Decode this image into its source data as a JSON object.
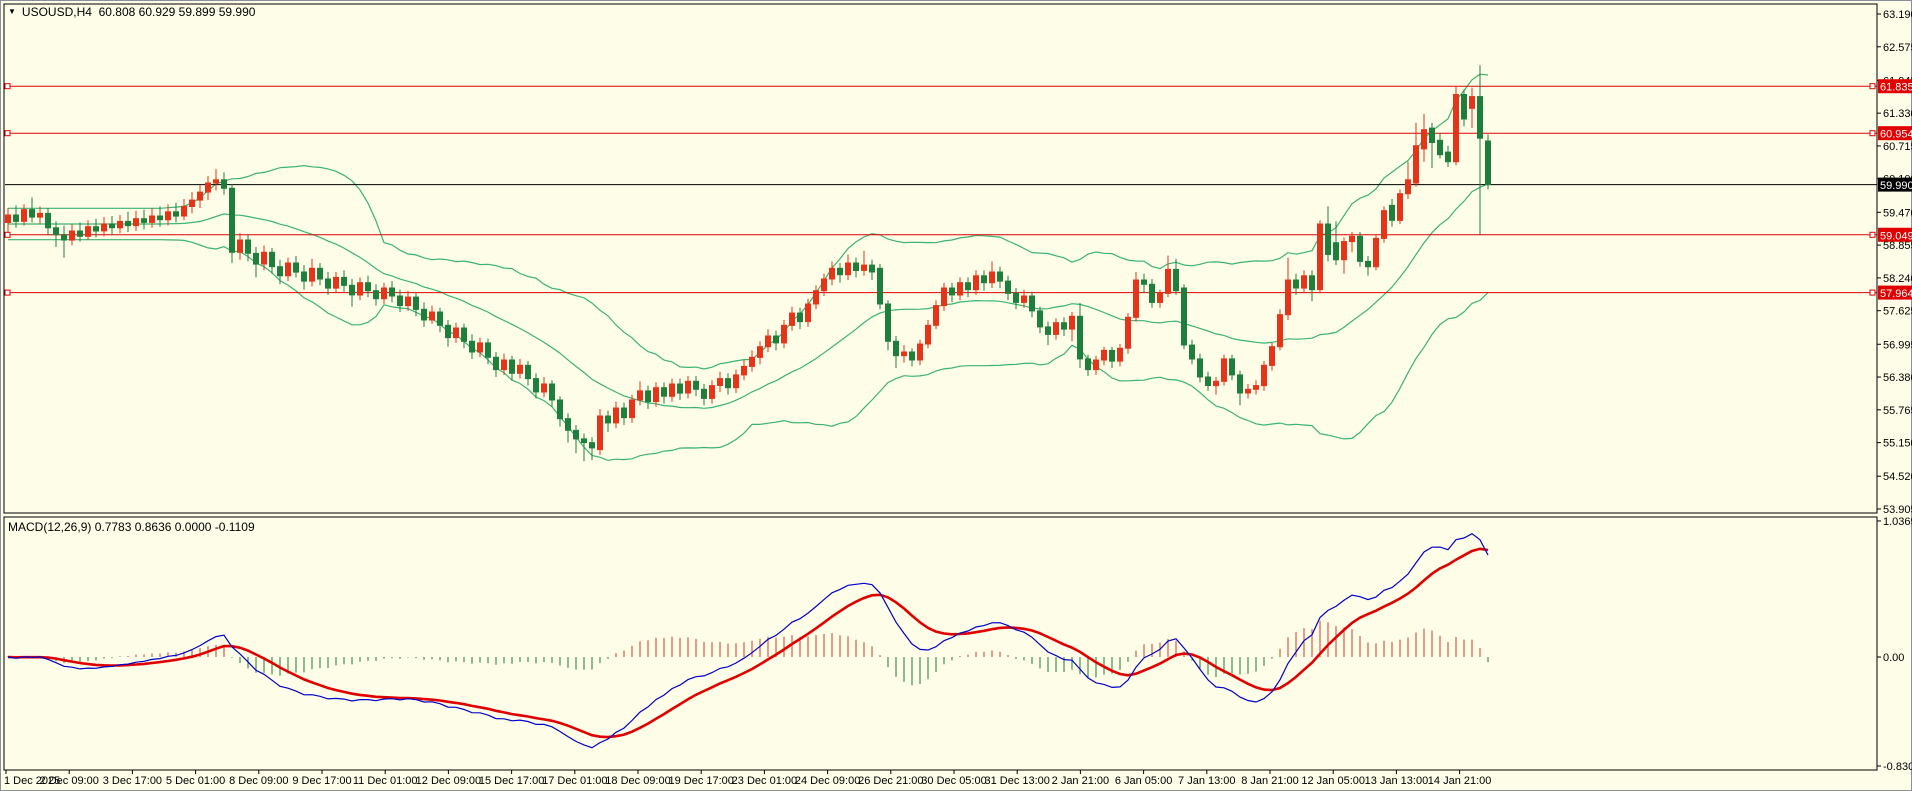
{
  "window": {
    "title_symbol": "USOUSD,H4",
    "title_ohlc": "60.808 60.929 59.899 59.990",
    "dropdown_marker": "▼"
  },
  "colors": {
    "background": "#FDFDE8",
    "frame": "#000000",
    "outer_border": "#8A9099",
    "bull_candle": "#E5341A",
    "bear_candle": "#1E7F3C",
    "bollinger": "#3CB371",
    "macd_line": "#0000CC",
    "signal_line": "#E00000",
    "hist_positive": "#CF3B2A",
    "hist_negative": "#1C7A33",
    "hline_red": "#E00000",
    "hline_black": "#000000",
    "badge_text": "#FFFFFF",
    "axis_text": "#000000"
  },
  "price_axis": {
    "ticks": [
      "63.190",
      "62.575",
      "61.945",
      "61.330",
      "60.715",
      "60.100",
      "59.470",
      "58.855",
      "58.240",
      "57.625",
      "56.995",
      "56.380",
      "55.765",
      "55.150",
      "54.520",
      "53.905"
    ],
    "hlines": [
      {
        "price": 61.835,
        "label": "61.835",
        "style": "red"
      },
      {
        "price": 60.954,
        "label": "60.954",
        "style": "red"
      },
      {
        "price": 59.99,
        "label": "59.990",
        "style": "black"
      },
      {
        "price": 59.049,
        "label": "59.049",
        "style": "red"
      },
      {
        "price": 57.964,
        "label": "57.964",
        "style": "red"
      }
    ]
  },
  "time_axis": {
    "labels": [
      "1 Dec 2025",
      "2 Dec 09:00",
      "3 Dec 17:00",
      "5 Dec 01:00",
      "8 Dec 09:00",
      "9 Dec 17:00",
      "11 Dec 01:00",
      "12 Dec 09:00",
      "15 Dec 17:00",
      "17 Dec 01:00",
      "18 Dec 09:00",
      "19 Dec 17:00",
      "23 Dec 01:00",
      "24 Dec 09:00",
      "26 Dec 21:00",
      "30 Dec 05:00",
      "31 Dec 13:00",
      "2 Jan 21:00",
      "6 Jan 05:00",
      "7 Jan 13:00",
      "8 Jan 21:00",
      "12 Jan 05:00",
      "13 Jan 13:00",
      "14 Jan 21:00"
    ]
  },
  "indicator": {
    "label": "MACD(12,26,9) 0.7783 0.8636 0.0000 -0.1109",
    "axis": [
      {
        "value": 1.0369,
        "label": "1.0369"
      },
      {
        "value": 0,
        "label": "0.00"
      },
      {
        "value": -0.8307,
        "label": "-0.8307"
      }
    ]
  },
  "chart_data": {
    "type": "candlestick",
    "symbol": "USOUSD",
    "timeframe": "H4",
    "note": "candles as [open,high,low,close]; up candles drawn red, down candles drawn green",
    "last_bar": {
      "open": 60.808,
      "high": 60.929,
      "low": 59.899,
      "close": 59.99
    },
    "indicators": [
      {
        "type": "bollinger",
        "period": 20,
        "deviation": 2
      },
      {
        "type": "macd",
        "fast": 12,
        "slow": 26,
        "signal": 9,
        "values": [
          0.7783,
          0.8636,
          0.0,
          -0.1109
        ]
      }
    ],
    "ylim": [
      53.83,
      63.3
    ],
    "macd_ylim": [
      -0.88,
      1.08
    ],
    "candles": [
      [
        59.28,
        59.55,
        59.1,
        59.42
      ],
      [
        59.42,
        59.6,
        59.18,
        59.3
      ],
      [
        59.3,
        59.62,
        59.22,
        59.52
      ],
      [
        59.52,
        59.75,
        59.28,
        59.38
      ],
      [
        59.38,
        59.58,
        59.25,
        59.45
      ],
      [
        59.45,
        59.55,
        59.05,
        59.18
      ],
      [
        59.18,
        59.3,
        58.82,
        59.05
      ],
      [
        59.05,
        59.22,
        58.62,
        58.95
      ],
      [
        58.95,
        59.25,
        58.85,
        59.12
      ],
      [
        59.12,
        59.28,
        58.92,
        59.02
      ],
      [
        59.02,
        59.32,
        58.95,
        59.2
      ],
      [
        59.2,
        59.35,
        59.0,
        59.12
      ],
      [
        59.12,
        59.38,
        59.02,
        59.25
      ],
      [
        59.25,
        59.4,
        59.05,
        59.18
      ],
      [
        59.18,
        59.42,
        59.08,
        59.3
      ],
      [
        59.3,
        59.48,
        59.1,
        59.22
      ],
      [
        59.22,
        59.5,
        59.12,
        59.35
      ],
      [
        59.35,
        59.52,
        59.15,
        59.28
      ],
      [
        59.28,
        59.55,
        59.18,
        59.4
      ],
      [
        59.4,
        59.58,
        59.2,
        59.33
      ],
      [
        59.33,
        59.62,
        59.22,
        59.48
      ],
      [
        59.48,
        59.65,
        59.28,
        59.4
      ],
      [
        59.4,
        59.72,
        59.32,
        59.58
      ],
      [
        59.58,
        59.85,
        59.45,
        59.7
      ],
      [
        59.7,
        59.98,
        59.55,
        59.85
      ],
      [
        59.85,
        60.15,
        59.7,
        60.02
      ],
      [
        60.02,
        60.28,
        59.88,
        60.08
      ],
      [
        60.08,
        60.22,
        59.8,
        59.92
      ],
      [
        59.92,
        60.0,
        58.52,
        58.72
      ],
      [
        58.72,
        59.08,
        58.58,
        58.95
      ],
      [
        58.95,
        59.05,
        58.55,
        58.7
      ],
      [
        58.7,
        58.82,
        58.25,
        58.5
      ],
      [
        58.5,
        58.85,
        58.38,
        58.72
      ],
      [
        58.72,
        58.8,
        58.32,
        58.45
      ],
      [
        58.45,
        58.58,
        58.12,
        58.28
      ],
      [
        58.28,
        58.62,
        58.18,
        58.52
      ],
      [
        58.52,
        58.65,
        58.25,
        58.35
      ],
      [
        58.35,
        58.48,
        58.02,
        58.18
      ],
      [
        58.18,
        58.6,
        58.08,
        58.42
      ],
      [
        58.42,
        58.52,
        58.1,
        58.22
      ],
      [
        58.22,
        58.35,
        57.92,
        58.05
      ],
      [
        58.05,
        58.35,
        57.95,
        58.25
      ],
      [
        58.25,
        58.38,
        57.98,
        58.1
      ],
      [
        58.1,
        58.22,
        57.7,
        57.92
      ],
      [
        57.92,
        58.25,
        57.82,
        58.15
      ],
      [
        58.15,
        58.28,
        57.88,
        58.0
      ],
      [
        58.0,
        58.12,
        57.72,
        57.85
      ],
      [
        57.85,
        58.15,
        57.75,
        58.05
      ],
      [
        58.05,
        58.18,
        57.78,
        57.9
      ],
      [
        57.9,
        58.02,
        57.6,
        57.72
      ],
      [
        57.72,
        58.0,
        57.62,
        57.88
      ],
      [
        57.88,
        57.95,
        57.52,
        57.65
      ],
      [
        57.65,
        57.78,
        57.32,
        57.45
      ],
      [
        57.45,
        57.72,
        57.38,
        57.6
      ],
      [
        57.6,
        57.68,
        57.22,
        57.35
      ],
      [
        57.35,
        57.45,
        56.95,
        57.12
      ],
      [
        57.12,
        57.4,
        57.02,
        57.3
      ],
      [
        57.3,
        57.38,
        56.92,
        57.05
      ],
      [
        57.05,
        57.18,
        56.72,
        56.85
      ],
      [
        56.85,
        57.12,
        56.75,
        57.02
      ],
      [
        57.02,
        57.1,
        56.62,
        56.75
      ],
      [
        56.75,
        56.85,
        56.38,
        56.52
      ],
      [
        56.52,
        56.82,
        56.42,
        56.7
      ],
      [
        56.7,
        56.78,
        56.32,
        56.45
      ],
      [
        56.45,
        56.72,
        56.35,
        56.6
      ],
      [
        56.6,
        56.68,
        56.22,
        56.35
      ],
      [
        56.35,
        56.45,
        55.98,
        56.1
      ],
      [
        56.1,
        56.38,
        56.0,
        56.25
      ],
      [
        56.25,
        56.32,
        55.82,
        55.95
      ],
      [
        55.95,
        56.02,
        55.45,
        55.6
      ],
      [
        55.6,
        55.7,
        55.15,
        55.38
      ],
      [
        55.38,
        55.48,
        54.95,
        55.22
      ],
      [
        55.22,
        55.32,
        54.8,
        55.15
      ],
      [
        55.15,
        55.25,
        54.82,
        55.05
      ],
      [
        55.02,
        55.78,
        54.92,
        55.65
      ],
      [
        55.65,
        55.75,
        55.35,
        55.52
      ],
      [
        55.52,
        55.92,
        55.42,
        55.8
      ],
      [
        55.8,
        55.9,
        55.48,
        55.62
      ],
      [
        55.62,
        56.05,
        55.52,
        55.95
      ],
      [
        55.95,
        56.3,
        55.85,
        56.12
      ],
      [
        56.12,
        56.22,
        55.78,
        55.92
      ],
      [
        55.92,
        56.28,
        55.82,
        56.18
      ],
      [
        56.18,
        56.28,
        55.88,
        56.02
      ],
      [
        56.02,
        56.35,
        55.92,
        56.25
      ],
      [
        56.25,
        56.35,
        55.95,
        56.08
      ],
      [
        56.08,
        56.4,
        55.98,
        56.3
      ],
      [
        56.3,
        56.4,
        56.02,
        56.15
      ],
      [
        56.15,
        56.25,
        55.85,
        55.98
      ],
      [
        55.98,
        56.32,
        55.88,
        56.22
      ],
      [
        56.22,
        56.48,
        56.1,
        56.35
      ],
      [
        56.35,
        56.45,
        56.05,
        56.18
      ],
      [
        56.18,
        56.52,
        56.08,
        56.42
      ],
      [
        56.42,
        56.7,
        56.32,
        56.58
      ],
      [
        56.58,
        56.88,
        56.48,
        56.75
      ],
      [
        56.75,
        57.05,
        56.62,
        56.95
      ],
      [
        56.95,
        57.28,
        56.85,
        57.15
      ],
      [
        57.15,
        57.25,
        56.88,
        57.02
      ],
      [
        57.02,
        57.45,
        56.92,
        57.35
      ],
      [
        57.35,
        57.7,
        57.25,
        57.58
      ],
      [
        57.58,
        57.68,
        57.28,
        57.42
      ],
      [
        57.42,
        57.85,
        57.32,
        57.75
      ],
      [
        57.75,
        58.1,
        57.65,
        58.0
      ],
      [
        58.0,
        58.32,
        57.9,
        58.22
      ],
      [
        58.22,
        58.55,
        58.1,
        58.42
      ],
      [
        58.42,
        58.52,
        58.15,
        58.3
      ],
      [
        58.3,
        58.68,
        58.2,
        58.52
      ],
      [
        58.52,
        58.62,
        58.25,
        58.38
      ],
      [
        58.38,
        58.75,
        58.28,
        58.48
      ],
      [
        58.48,
        58.58,
        58.2,
        58.35
      ],
      [
        58.42,
        58.5,
        57.65,
        57.75
      ],
      [
        57.75,
        57.82,
        56.88,
        57.05
      ],
      [
        57.05,
        57.15,
        56.55,
        56.78
      ],
      [
        56.78,
        56.98,
        56.65,
        56.85
      ],
      [
        56.85,
        56.92,
        56.58,
        56.7
      ],
      [
        56.7,
        57.08,
        56.6,
        57.0
      ],
      [
        57.0,
        57.45,
        56.92,
        57.35
      ],
      [
        57.35,
        57.82,
        57.28,
        57.72
      ],
      [
        57.72,
        58.15,
        57.62,
        58.05
      ],
      [
        58.05,
        58.15,
        57.78,
        57.92
      ],
      [
        57.92,
        58.25,
        57.82,
        58.15
      ],
      [
        58.15,
        58.25,
        57.88,
        58.02
      ],
      [
        58.02,
        58.38,
        57.92,
        58.28
      ],
      [
        58.28,
        58.38,
        58.0,
        58.15
      ],
      [
        58.15,
        58.55,
        58.05,
        58.35
      ],
      [
        58.35,
        58.45,
        58.05,
        58.18
      ],
      [
        58.18,
        58.28,
        57.82,
        57.95
      ],
      [
        57.95,
        58.05,
        57.65,
        57.78
      ],
      [
        57.78,
        58.02,
        57.68,
        57.9
      ],
      [
        57.9,
        57.98,
        57.5,
        57.62
      ],
      [
        57.62,
        57.7,
        57.2,
        57.32
      ],
      [
        57.32,
        57.42,
        56.98,
        57.18
      ],
      [
        57.18,
        57.48,
        57.08,
        57.4
      ],
      [
        57.4,
        57.5,
        57.15,
        57.28
      ],
      [
        57.28,
        57.6,
        57.05,
        57.52
      ],
      [
        57.52,
        57.77,
        56.55,
        56.72
      ],
      [
        56.72,
        56.8,
        56.4,
        56.52
      ],
      [
        56.52,
        56.78,
        56.42,
        56.7
      ],
      [
        56.7,
        56.95,
        56.6,
        56.88
      ],
      [
        56.88,
        56.95,
        56.55,
        56.68
      ],
      [
        56.68,
        57.0,
        56.58,
        56.92
      ],
      [
        56.92,
        57.58,
        56.82,
        57.5
      ],
      [
        57.5,
        58.35,
        57.42,
        58.2
      ],
      [
        58.2,
        58.32,
        57.95,
        58.12
      ],
      [
        58.12,
        58.22,
        57.68,
        57.78
      ],
      [
        57.78,
        58.02,
        57.68,
        57.95
      ],
      [
        57.95,
        58.66,
        57.88,
        58.4
      ],
      [
        58.4,
        58.6,
        57.92,
        58.0
      ],
      [
        58.05,
        58.12,
        56.9,
        56.98
      ],
      [
        56.98,
        57.08,
        56.62,
        56.72
      ],
      [
        56.72,
        56.82,
        56.28,
        56.38
      ],
      [
        56.38,
        56.48,
        56.12,
        56.22
      ],
      [
        56.22,
        56.38,
        56.05,
        56.3
      ],
      [
        56.3,
        56.8,
        56.22,
        56.72
      ],
      [
        56.72,
        56.8,
        56.32,
        56.42
      ],
      [
        56.42,
        56.5,
        55.85,
        56.08
      ],
      [
        56.08,
        56.25,
        55.98,
        56.15
      ],
      [
        56.15,
        56.32,
        56.05,
        56.22
      ],
      [
        56.22,
        56.68,
        56.12,
        56.6
      ],
      [
        56.6,
        57.02,
        56.5,
        56.95
      ],
      [
        56.95,
        57.65,
        56.88,
        57.55
      ],
      [
        57.55,
        58.62,
        57.45,
        58.2
      ],
      [
        58.2,
        58.32,
        57.92,
        58.05
      ],
      [
        58.05,
        58.38,
        57.95,
        58.28
      ],
      [
        58.28,
        58.38,
        57.8,
        58.02
      ],
      [
        58.02,
        59.32,
        57.95,
        59.25
      ],
      [
        59.25,
        59.58,
        58.55,
        58.68
      ],
      [
        58.9,
        59.3,
        58.48,
        58.58
      ],
      [
        58.58,
        59.0,
        58.32,
        58.92
      ],
      [
        58.92,
        59.1,
        58.72,
        59.02
      ],
      [
        59.02,
        59.1,
        58.45,
        58.55
      ],
      [
        58.55,
        58.65,
        58.28,
        58.45
      ],
      [
        58.45,
        59.05,
        58.38,
        58.98
      ],
      [
        58.98,
        59.58,
        58.9,
        59.5
      ],
      [
        59.6,
        59.72,
        59.2,
        59.32
      ],
      [
        59.32,
        59.9,
        59.25,
        59.82
      ],
      [
        59.82,
        60.42,
        59.72,
        60.08
      ],
      [
        60.02,
        61.15,
        59.95,
        60.72
      ],
      [
        60.66,
        61.32,
        60.42,
        61.02
      ],
      [
        61.05,
        61.15,
        60.3,
        60.78
      ],
      [
        60.82,
        60.95,
        60.48,
        60.55
      ],
      [
        60.6,
        60.72,
        60.32,
        60.42
      ],
      [
        60.42,
        61.84,
        60.35,
        61.68
      ],
      [
        61.68,
        61.78,
        61.08,
        61.22
      ],
      [
        61.42,
        61.81,
        61.05,
        61.64
      ],
      [
        61.64,
        62.23,
        59.05,
        60.86
      ],
      [
        60.808,
        60.929,
        59.899,
        59.99
      ]
    ]
  }
}
